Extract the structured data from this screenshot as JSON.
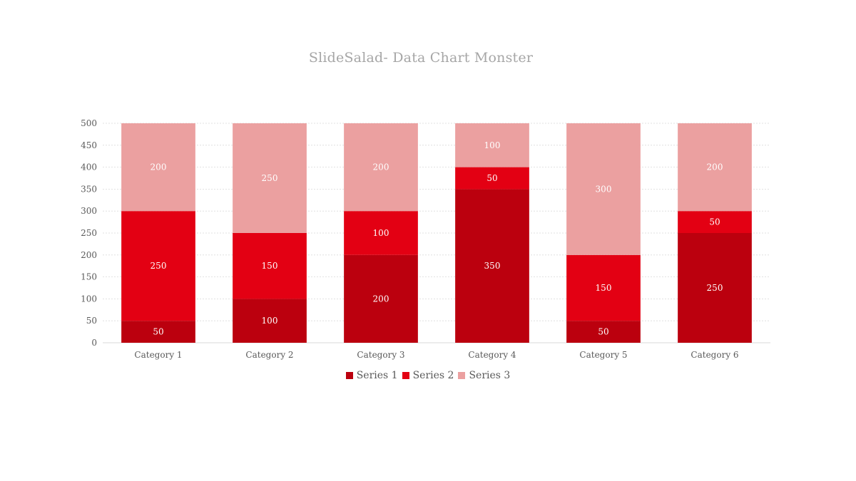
{
  "chart_data": {
    "type": "bar",
    "stacked": true,
    "title": "SlideSalad- Data Chart Monster",
    "xlabel": "",
    "ylabel": "",
    "categories": [
      "Category 1",
      "Category 2",
      "Category 3",
      "Category 4",
      "Category 5",
      "Category 6"
    ],
    "series": [
      {
        "name": "Series 1",
        "color": "#bb000e",
        "values": [
          50,
          100,
          200,
          350,
          50,
          250
        ]
      },
      {
        "name": "Series 2",
        "color": "#e30013",
        "values": [
          250,
          150,
          100,
          50,
          150,
          50
        ]
      },
      {
        "name": "Series 3",
        "color": "#eba0a0",
        "values": [
          200,
          250,
          200,
          100,
          300,
          200
        ]
      }
    ],
    "ylim": [
      0,
      500
    ],
    "yticks": [
      0,
      50,
      100,
      150,
      200,
      250,
      300,
      350,
      400,
      450,
      500
    ],
    "grid": true,
    "legend_position": "bottom",
    "data_labels": true
  }
}
